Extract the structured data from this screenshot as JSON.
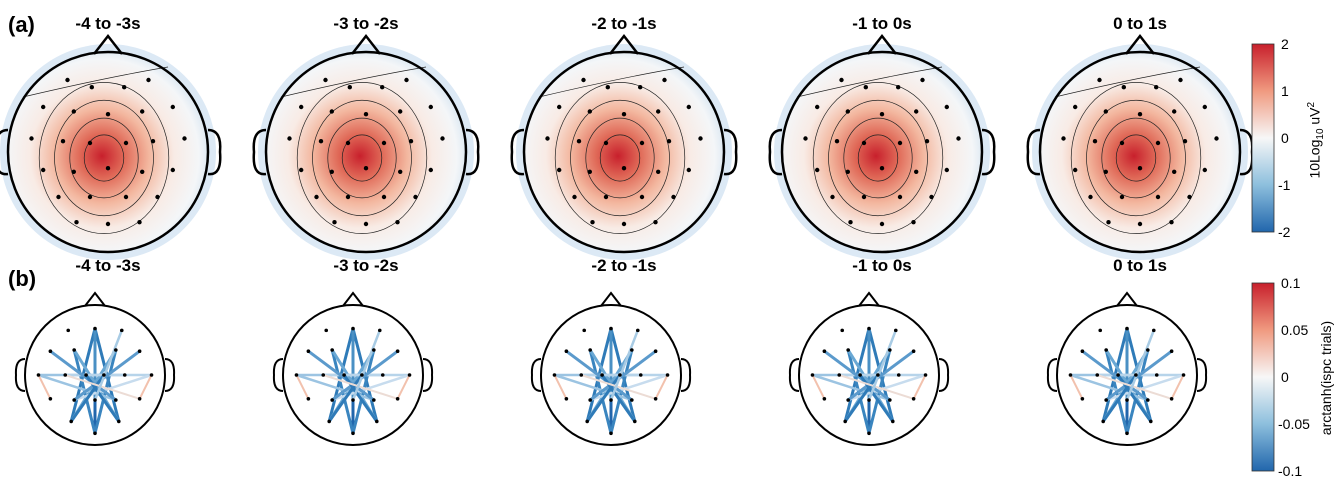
{
  "panel_a": {
    "label": "(a)",
    "titles": [
      "-4 to -3s",
      "-3 to -2s",
      "-2 to -1s",
      "-1 to 0s",
      "0 to 1s"
    ],
    "colorbar": {
      "ticks": [
        "2",
        "1",
        "0",
        "-1",
        "-2"
      ],
      "label_main": "10Log",
      "label_sub": "10",
      "label_unit": " uV",
      "label_sup": "2",
      "range": [
        -2,
        2
      ]
    }
  },
  "panel_b": {
    "label": "(b)",
    "titles": [
      "-4 to -3s",
      "-3 to -2s",
      "-2 to -1s",
      "-1 to 0s",
      "0 to 1s"
    ],
    "colorbar": {
      "ticks": [
        "0.1",
        "0.05",
        "0",
        "-0.05",
        "-0.1"
      ],
      "label": "arctanh(ispc trials)",
      "range": [
        -0.1,
        0.1
      ]
    }
  },
  "colors": {
    "positive": "#c8202c",
    "neutral": "#f7f7f7",
    "negative": "#2166ac"
  }
}
